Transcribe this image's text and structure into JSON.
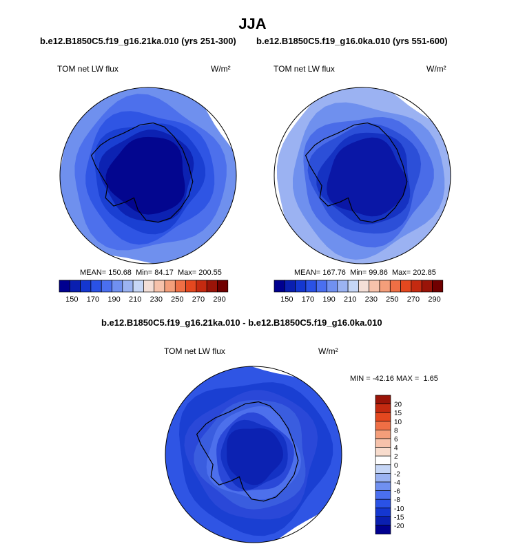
{
  "page": {
    "title": "JJA",
    "run_a_subtitle": "b.e12.B1850C5.f19_g16.21ka.010 (yrs 251-300)",
    "run_b_subtitle": "b.e12.B1850C5.f19_g16.0ka.010 (yrs 551-600)",
    "diff_subtitle": "b.e12.B1850C5.f19_g16.21ka.010 - b.e12.B1850C5.f19_g16.0ka.010"
  },
  "chart_data": [
    {
      "type": "heatmap",
      "projection": "south-polar-stereographic",
      "field_label": "TOM net LW flux",
      "units": "W/m²",
      "mean": 150.68,
      "min": 84.17,
      "max": 200.55,
      "mean_label": "MEAN=",
      "min_label": "Min=",
      "max_label": "Max=",
      "colorbar_tick_labels": [
        "150",
        "170",
        "190",
        "210",
        "230",
        "250",
        "270",
        "290"
      ],
      "colorbar_colors": [
        "#00008f",
        "#0a1fb0",
        "#1437d0",
        "#2a52e6",
        "#4a6ff0",
        "#7090f0",
        "#9bb3f2",
        "#c6d6f6",
        "#f4dfd7",
        "#f6c2ab",
        "#f49e7a",
        "#ef6f45",
        "#e4481f",
        "#c42a10",
        "#9a1408",
        "#700000"
      ],
      "field_levels": [
        "#6f90ee",
        "#4d70ec",
        "#2f55e4",
        "#1a3fd2",
        "#0c22b2",
        "#03068f"
      ]
    },
    {
      "type": "heatmap",
      "projection": "south-polar-stereographic",
      "field_label": "TOM net LW flux",
      "units": "W/m²",
      "mean": 167.76,
      "min": 99.86,
      "max": 202.85,
      "mean_label": "MEAN=",
      "min_label": "Min=",
      "max_label": "Max=",
      "colorbar_tick_labels": [
        "150",
        "170",
        "190",
        "210",
        "230",
        "250",
        "270",
        "290"
      ],
      "colorbar_colors": [
        "#00008f",
        "#0a1fb0",
        "#1437d0",
        "#2a52e6",
        "#4a6ff0",
        "#7090f0",
        "#9bb3f2",
        "#c6d6f6",
        "#f4dfd7",
        "#f6c2ab",
        "#f49e7a",
        "#ef6f45",
        "#e4481f",
        "#c42a10",
        "#9a1408",
        "#700000"
      ],
      "field_levels": [
        "#9bb2f2",
        "#6f90ee",
        "#4a6ce8",
        "#2c4fd8",
        "#1532c2",
        "#0a17a6"
      ]
    },
    {
      "type": "heatmap",
      "projection": "south-polar-stereographic",
      "field_label": "TOM net LW flux",
      "units": "W/m²",
      "min": -42.16,
      "max": 1.65,
      "min_label": "MIN =",
      "max_label": "MAX =",
      "colorbar_tick_labels": [
        "20",
        "15",
        "10",
        "8",
        "6",
        "4",
        "2",
        "0",
        "-2",
        "-4",
        "-6",
        "-8",
        "-10",
        "-15",
        "-20"
      ],
      "colorbar_colors": [
        "#9a1408",
        "#c42a10",
        "#e4481f",
        "#ef6f45",
        "#f49e7a",
        "#f6c2ab",
        "#f8dccd",
        "#ffffff",
        "#c6d6f6",
        "#9bb3f2",
        "#7090f0",
        "#4a6ff0",
        "#2a52e6",
        "#1437d0",
        "#0a1fb0",
        "#00008f"
      ],
      "field_levels": [
        "#2f55e4",
        "#1a3fd2",
        "#2a48d8",
        "#3a5ddf",
        "#4d70ec",
        "#2a48d8",
        "#1432c4",
        "#0c22b2"
      ]
    }
  ]
}
